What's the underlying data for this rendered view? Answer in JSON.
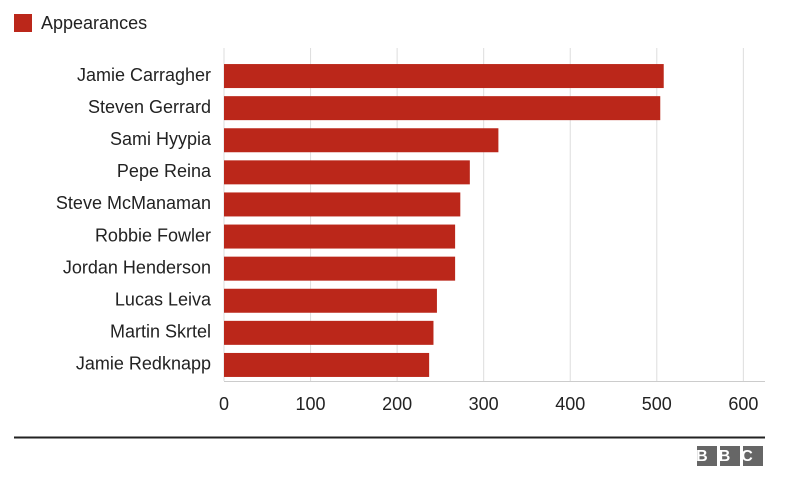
{
  "chart_data": {
    "type": "bar",
    "orientation": "horizontal",
    "categories": [
      "Jamie Carragher",
      "Steven Gerrard",
      "Sami Hyypia",
      "Pepe Reina",
      "Steve McManaman",
      "Robbie Fowler",
      "Jordan Henderson",
      "Lucas Leiva",
      "Martin Skrtel",
      "Jamie Redknapp"
    ],
    "series": [
      {
        "name": "Appearances",
        "color": "#bb271a",
        "values": [
          508,
          504,
          317,
          284,
          273,
          267,
          267,
          246,
          242,
          237
        ]
      }
    ],
    "xlim": [
      0,
      625
    ],
    "xticks": [
      0,
      100,
      200,
      300,
      400,
      500,
      600
    ],
    "grid": true,
    "legend": "top-left"
  },
  "footer": {
    "logo": "BBC"
  }
}
